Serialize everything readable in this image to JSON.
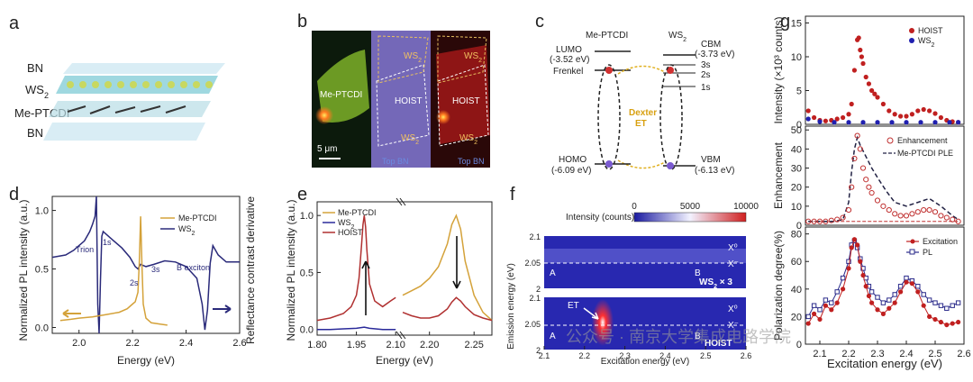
{
  "panels": {
    "a": {
      "label": "a",
      "layers": [
        "BN",
        "WS",
        "Me-PTCDI",
        "BN"
      ],
      "ws_sub": "2"
    },
    "b": {
      "label": "b",
      "labels": [
        "Me-PTCDI",
        "WS",
        "HOIST",
        "WS",
        "WS",
        "HOIST",
        "WS"
      ],
      "ws_sub": "2",
      "scale_bar": "5 μm",
      "bottom_labels": [
        "Top BN",
        "Top BN"
      ]
    },
    "c": {
      "label": "c",
      "left_title": "Me-PTCDI",
      "right_title": "WS",
      "right_title_sub": "2",
      "lumo": "LUMO",
      "lumo_val": "(-3.52 eV)",
      "cbm": "CBM",
      "cbm_val": "(-3.73 eV)",
      "frenkel": "Frenkel",
      "levels": [
        "3s",
        "2s",
        "1s"
      ],
      "dexter": "Dexter",
      "et": "ET",
      "homo": "HOMO",
      "homo_val": "(-6.09 eV)",
      "vbm": "VBM",
      "vbm_val": "(-6.13 eV)"
    },
    "g_label": "g",
    "f_label": "f"
  },
  "chart_data": [
    {
      "id": "d",
      "type": "line",
      "label": "d",
      "xlabel": "Energy (eV)",
      "ylabel": "Normalized PL intensity (a.u.)",
      "y2label": "Reflectance contrast derivative",
      "xlim": [
        1.9,
        2.6
      ],
      "ylim": [
        -0.05,
        1.12
      ],
      "xticks": [
        "2.0",
        "2.2",
        "2.4",
        "2.6"
      ],
      "xtick_values": [
        2.0,
        2.2,
        2.4,
        2.6
      ],
      "yticks": [
        "0.0",
        "0.5",
        "1.0"
      ],
      "ytick_values": [
        0.0,
        0.5,
        1.0
      ],
      "legend": [
        "Me-PTCDI",
        "WS"
      ],
      "legend_sub": "2",
      "annotations": [
        "Trion",
        "1s",
        "2s",
        "3s",
        "B exciton"
      ],
      "series": [
        {
          "name": "Me-PTCDI",
          "color": "#d4a23a",
          "x": [
            1.93,
            1.97,
            2.0,
            2.05,
            2.1,
            2.15,
            2.18,
            2.2,
            2.21,
            2.22,
            2.225,
            2.23,
            2.235,
            2.24,
            2.25,
            2.27,
            2.3,
            2.33
          ],
          "y": [
            0.06,
            0.07,
            0.08,
            0.09,
            0.11,
            0.13,
            0.16,
            0.2,
            0.22,
            0.3,
            0.55,
            0.95,
            0.55,
            0.2,
            0.08,
            0.04,
            0.03,
            0.02
          ]
        },
        {
          "name": "WS",
          "color": "#2a2a7a",
          "x": [
            1.9,
            1.95,
            1.98,
            2.0,
            2.02,
            2.04,
            2.05,
            2.06,
            2.065,
            2.07,
            2.075,
            2.08,
            2.085,
            2.09,
            2.1,
            2.13,
            2.16,
            2.19,
            2.21,
            2.22,
            2.23,
            2.25,
            2.28,
            2.32,
            2.36,
            2.4,
            2.44,
            2.46,
            2.47,
            2.48,
            2.49,
            2.5,
            2.52,
            2.55,
            2.6
          ],
          "y": [
            0.6,
            0.62,
            0.66,
            0.7,
            0.74,
            0.82,
            0.88,
            0.95,
            1.12,
            0.2,
            -0.05,
            0.4,
            0.78,
            0.82,
            0.8,
            0.74,
            0.68,
            0.6,
            0.52,
            0.5,
            0.54,
            0.52,
            0.54,
            0.57,
            0.56,
            0.52,
            0.42,
            0.2,
            -0.02,
            0.15,
            0.55,
            0.7,
            0.62,
            0.56,
            0.56
          ]
        }
      ]
    },
    {
      "id": "e",
      "type": "line",
      "label": "e",
      "xlabel": "Energy (eV)",
      "ylabel": "Normalized PL intensity (a.u.)",
      "xticks_left": [
        "1.80",
        "1.95",
        "2.10"
      ],
      "xtick_values_left": [
        1.8,
        1.95,
        2.1
      ],
      "xticks_right": [
        "2.20",
        "2.25"
      ],
      "xtick_values_right": [
        2.2,
        2.25
      ],
      "xlim_left": [
        1.8,
        2.12
      ],
      "xlim_right": [
        2.17,
        2.27
      ],
      "ylim": [
        -0.05,
        1.12
      ],
      "yticks": [
        "0.0",
        "0.5",
        "1.0"
      ],
      "ytick_values": [
        0.0,
        0.5,
        1.0
      ],
      "legend": [
        "Me-PTCDI",
        "WS",
        "HOIST"
      ],
      "legend_sub": "2",
      "series": [
        {
          "name": "Me-PTCDI",
          "color": "#d4a23a",
          "x": [
            2.17,
            2.18,
            2.19,
            2.2,
            2.21,
            2.22,
            2.225,
            2.23,
            2.235,
            2.24,
            2.25,
            2.26,
            2.27
          ],
          "y": [
            0.3,
            0.34,
            0.38,
            0.45,
            0.55,
            0.75,
            0.92,
            1.0,
            0.88,
            0.6,
            0.3,
            0.15,
            0.08
          ]
        },
        {
          "name": "WS",
          "color": "#2a2a9a",
          "x": [
            1.8,
            1.85,
            1.9,
            1.95,
            1.98,
            2.0,
            2.05,
            2.1
          ],
          "y": [
            0.0,
            0.0,
            0.005,
            0.01,
            0.02,
            0.01,
            0.0,
            0.0
          ]
        },
        {
          "name": "HOIST",
          "color": "#b03030",
          "x": [
            1.8,
            1.85,
            1.9,
            1.93,
            1.95,
            1.96,
            1.97,
            1.975,
            1.98,
            1.985,
            1.99,
            2.0,
            2.02,
            2.05,
            2.08,
            2.1
          ],
          "y": [
            0.08,
            0.1,
            0.14,
            0.2,
            0.3,
            0.45,
            0.75,
            0.92,
            1.0,
            0.9,
            0.7,
            0.4,
            0.25,
            0.2,
            0.25,
            0.28
          ]
        },
        {
          "name": "HOIST-right",
          "color": "#b03030",
          "x": [
            2.17,
            2.18,
            2.19,
            2.2,
            2.21,
            2.22,
            2.225,
            2.23,
            2.235,
            2.24,
            2.25,
            2.26,
            2.27
          ],
          "y": [
            0.15,
            0.12,
            0.1,
            0.1,
            0.12,
            0.18,
            0.24,
            0.28,
            0.25,
            0.2,
            0.13,
            0.1,
            0.08
          ]
        }
      ]
    },
    {
      "id": "f",
      "type": "heatmap",
      "label": "f",
      "colorbar_label": "Intensity (counts)",
      "colorbar_ticks": [
        "0",
        "5000",
        "10000"
      ],
      "colorbar_values": [
        0,
        5000,
        10000
      ],
      "xlabel": "Excitation energy (eV)",
      "ylabel": "Emission energy (eV)",
      "xticks": [
        "2.1",
        "2.2",
        "2.3",
        "2.4",
        "2.5",
        "2.6"
      ],
      "xtick_values": [
        2.1,
        2.2,
        2.3,
        2.4,
        2.5,
        2.6
      ],
      "yticks": [
        "2.1",
        "2.05",
        "2"
      ],
      "ytick_values": [
        2.1,
        2.05,
        2.0
      ],
      "top_panel": {
        "title": "WS",
        "sub": "2",
        "suffix": " × 3",
        "labels": [
          "X⁰",
          "X⁻",
          "A",
          "B"
        ]
      },
      "bottom_panel": {
        "title": "HOIST",
        "labels": [
          "X⁰",
          "X⁻",
          "A",
          "B",
          "ET"
        ]
      }
    },
    {
      "id": "g1",
      "type": "scatter",
      "ylabel": "Intensity (×10³ counts)",
      "xlim": [
        2.05,
        2.6
      ],
      "ylim": [
        0,
        16
      ],
      "yticks": [
        "0",
        "5",
        "10",
        "15"
      ],
      "ytick_values": [
        0,
        5,
        10,
        15
      ],
      "legend": [
        "HOIST",
        "WS"
      ],
      "legend_sub": "2",
      "series": [
        {
          "name": "HOIST",
          "color": "#c02020",
          "x": [
            2.06,
            2.08,
            2.1,
            2.12,
            2.14,
            2.16,
            2.18,
            2.2,
            2.21,
            2.22,
            2.23,
            2.235,
            2.24,
            2.245,
            2.25,
            2.26,
            2.27,
            2.28,
            2.29,
            2.3,
            2.32,
            2.34,
            2.36,
            2.38,
            2.4,
            2.42,
            2.44,
            2.46,
            2.48,
            2.5,
            2.52,
            2.54,
            2.56,
            2.58
          ],
          "y": [
            2.0,
            1.0,
            0.6,
            0.5,
            0.6,
            0.8,
            1.0,
            1.5,
            3.0,
            8.0,
            12.5,
            12.8,
            11.0,
            10.0,
            9.0,
            7.0,
            6.0,
            5.0,
            4.5,
            4.0,
            3.0,
            2.0,
            1.5,
            1.2,
            1.2,
            1.5,
            2.0,
            2.2,
            2.0,
            1.6,
            1.0,
            0.6,
            0.4,
            0.3
          ]
        },
        {
          "name": "WS",
          "color": "#2020b0",
          "x": [
            2.06,
            2.1,
            2.15,
            2.2,
            2.25,
            2.3,
            2.35,
            2.4,
            2.45,
            2.5,
            2.55,
            2.58
          ],
          "y": [
            0.8,
            0.4,
            0.3,
            0.3,
            0.3,
            0.3,
            0.3,
            0.3,
            0.3,
            0.3,
            0.3,
            0.3
          ]
        }
      ]
    },
    {
      "id": "g2",
      "type": "line",
      "ylabel": "Enhancement",
      "xlim": [
        2.05,
        2.6
      ],
      "ylim": [
        0,
        52
      ],
      "yticks": [
        "0",
        "10",
        "20",
        "30",
        "40",
        "50"
      ],
      "ytick_values": [
        0,
        10,
        20,
        30,
        40,
        50
      ],
      "legend": [
        "Enhancement",
        "Me-PTCDI PLE"
      ],
      "series": [
        {
          "name": "Enhancement",
          "color": "#c03030",
          "x": [
            2.06,
            2.08,
            2.1,
            2.12,
            2.14,
            2.16,
            2.18,
            2.2,
            2.21,
            2.22,
            2.23,
            2.24,
            2.25,
            2.26,
            2.27,
            2.28,
            2.3,
            2.32,
            2.34,
            2.36,
            2.38,
            2.4,
            2.42,
            2.44,
            2.46,
            2.48,
            2.5,
            2.52,
            2.54,
            2.56,
            2.58
          ],
          "y": [
            2,
            2,
            2,
            2,
            2.5,
            3,
            4,
            8,
            20,
            35,
            47,
            40,
            30,
            24,
            20,
            17,
            13,
            10,
            8,
            6,
            5,
            5,
            6,
            7,
            8,
            8,
            7,
            5,
            4,
            3,
            2
          ]
        },
        {
          "name": "Me-PTCDI PLE",
          "color": "#222244",
          "x": [
            2.06,
            2.1,
            2.15,
            2.18,
            2.2,
            2.21,
            2.22,
            2.23,
            2.24,
            2.26,
            2.28,
            2.3,
            2.33,
            2.36,
            2.4,
            2.44,
            2.48,
            2.52,
            2.56,
            2.58
          ],
          "y": [
            2,
            2,
            2,
            3,
            12,
            28,
            40,
            46,
            42,
            36,
            30,
            25,
            18,
            12,
            10,
            12,
            14,
            10,
            5,
            3
          ]
        },
        {
          "name": "baseline",
          "color": "#c03030",
          "x": [
            2.06,
            2.58
          ],
          "y": [
            2,
            2
          ]
        }
      ]
    },
    {
      "id": "g3",
      "type": "line",
      "xlabel": "Excitation energy (eV)",
      "ylabel": "Polarization degree(%)",
      "xlim": [
        2.05,
        2.6
      ],
      "ylim": [
        0,
        85
      ],
      "xticks": [
        "2.1",
        "2.2",
        "2.3",
        "2.4",
        "2.5",
        "2.6"
      ],
      "xtick_values": [
        2.1,
        2.2,
        2.3,
        2.4,
        2.5,
        2.6
      ],
      "yticks": [
        "0",
        "20",
        "40",
        "60",
        "80"
      ],
      "ytick_values": [
        0,
        20,
        40,
        60,
        80
      ],
      "legend": [
        "Excitation",
        "PL"
      ],
      "series": [
        {
          "name": "Excitation",
          "color": "#c02020",
          "x": [
            2.06,
            2.08,
            2.1,
            2.12,
            2.14,
            2.16,
            2.18,
            2.2,
            2.21,
            2.22,
            2.23,
            2.24,
            2.25,
            2.26,
            2.27,
            2.28,
            2.3,
            2.32,
            2.34,
            2.36,
            2.38,
            2.4,
            2.42,
            2.44,
            2.46,
            2.48,
            2.5,
            2.52,
            2.54,
            2.56,
            2.58
          ],
          "y": [
            15,
            22,
            18,
            28,
            25,
            30,
            40,
            55,
            70,
            76,
            72,
            60,
            50,
            42,
            35,
            30,
            25,
            22,
            26,
            30,
            38,
            45,
            44,
            38,
            28,
            20,
            18,
            16,
            14,
            15,
            16
          ]
        },
        {
          "name": "PL",
          "color": "#2a2a8a",
          "x": [
            2.06,
            2.08,
            2.1,
            2.12,
            2.14,
            2.16,
            2.18,
            2.2,
            2.21,
            2.22,
            2.23,
            2.24,
            2.25,
            2.26,
            2.27,
            2.28,
            2.3,
            2.32,
            2.34,
            2.36,
            2.38,
            2.4,
            2.42,
            2.44,
            2.46,
            2.48,
            2.5,
            2.52,
            2.54,
            2.56,
            2.58
          ],
          "y": [
            20,
            28,
            25,
            32,
            30,
            38,
            48,
            60,
            72,
            75,
            70,
            62,
            55,
            48,
            42,
            38,
            34,
            30,
            32,
            36,
            42,
            48,
            46,
            42,
            36,
            32,
            30,
            28,
            26,
            28,
            30
          ]
        }
      ]
    }
  ],
  "watermark": "公众号 · 南京大学集成电路学院"
}
